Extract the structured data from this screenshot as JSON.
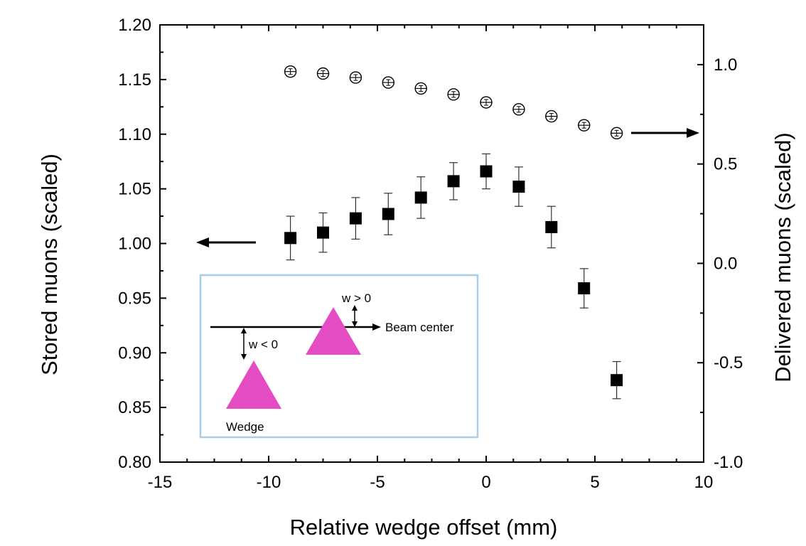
{
  "chart_data": {
    "type": "scatter",
    "xlabel": "Relative wedge offset (mm)",
    "ylabel_left": "Stored muons (scaled)",
    "ylabel_right": "Delivered muons (scaled)",
    "xlim": [
      -15,
      10
    ],
    "ylim_left": [
      0.8,
      1.2
    ],
    "ylim_right": [
      -1.0,
      1.2
    ],
    "x_ticks": [
      "-15",
      "-10",
      "-5",
      "0",
      "5",
      "10"
    ],
    "y_left_ticks": [
      "0.80",
      "0.85",
      "0.90",
      "0.95",
      "1.00",
      "1.05",
      "1.10",
      "1.15",
      "1.20"
    ],
    "y_right_ticks": [
      "-1.0",
      "-0.5",
      "0.0",
      "0.5",
      "1.0"
    ],
    "series": [
      {
        "name": "Stored muons",
        "axis": "left",
        "marker": "filled-square",
        "x": [
          -9,
          -7.5,
          -6,
          -4.5,
          -3,
          -1.5,
          0,
          1.5,
          3,
          4.5,
          6
        ],
        "y": [
          1.005,
          1.01,
          1.023,
          1.027,
          1.042,
          1.057,
          1.066,
          1.052,
          1.015,
          0.959,
          0.875
        ],
        "err": [
          0.02,
          0.018,
          0.019,
          0.019,
          0.019,
          0.017,
          0.016,
          0.018,
          0.019,
          0.018,
          0.017
        ]
      },
      {
        "name": "Delivered muons",
        "axis": "right",
        "marker": "open-circle",
        "x": [
          -9,
          -7.5,
          -6,
          -4.5,
          -3,
          -1.5,
          0,
          1.5,
          3,
          4.5,
          6
        ],
        "y": [
          0.965,
          0.955,
          0.935,
          0.91,
          0.88,
          0.85,
          0.81,
          0.775,
          0.74,
          0.695,
          0.655
        ],
        "err": [
          0.01,
          0.01,
          0.01,
          0.01,
          0.01,
          0.01,
          0.01,
          0.01,
          0.01,
          0.01,
          0.01
        ]
      }
    ],
    "inset": {
      "beam_label": "Beam center",
      "w_pos_label": "w > 0",
      "w_neg_label": "w < 0",
      "wedge_label": "Wedge",
      "wedge_color": "#e44cc4",
      "border_color": "#a8cde6"
    }
  }
}
